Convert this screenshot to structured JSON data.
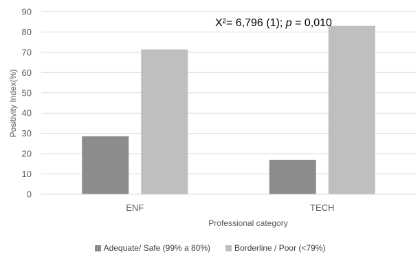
{
  "chart_data": {
    "type": "bar",
    "categories": [
      "ENF",
      "TECH"
    ],
    "series": [
      {
        "name": "Adequate/ Safe (99% a 80%)",
        "values": [
          28.6,
          17.0
        ],
        "color": "#8c8c8c"
      },
      {
        "name": "Borderline / Poor (<79%)",
        "values": [
          71.4,
          83.0
        ],
        "color": "#bfbfbf"
      }
    ],
    "xlabel": "Professional category",
    "ylabel": "Positivity Index(%)",
    "ylim": [
      0,
      90
    ],
    "yticks": [
      0,
      10,
      20,
      30,
      40,
      50,
      60,
      70,
      80,
      90
    ],
    "grid": true,
    "legend_position": "bottom",
    "annotation": {
      "parts": [
        {
          "text": "X²= 6,796 (1); ",
          "italic": false
        },
        {
          "text": "p",
          "italic": true
        },
        {
          "text": " = 0,010",
          "italic": false
        }
      ]
    }
  }
}
